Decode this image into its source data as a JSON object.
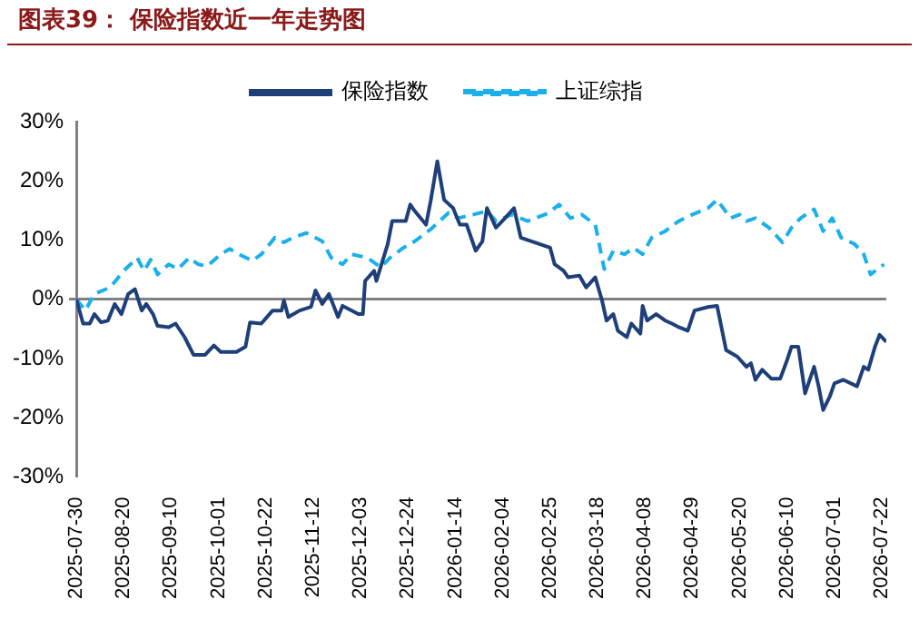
{
  "chart_data": {
    "type": "line",
    "title": "图表39： 保险指数近一年走势图",
    "legend": "top",
    "marker": "none",
    "xlim": [
      "2025-07-30",
      "2026-07-24"
    ],
    "xticks": [
      "2025-07-30",
      "2025-08-20",
      "2025-09-10",
      "2025-10-01",
      "2025-10-22",
      "2025-11-12",
      "2025-12-03",
      "2025-12-24",
      "2026-01-14",
      "2026-02-04",
      "2026-02-25",
      "2026-03-18",
      "2026-04-08",
      "2026-04-29",
      "2026-05-20",
      "2026-06-10",
      "2026-07-01",
      "2026-07-22"
    ],
    "ylim": [
      -30,
      30
    ],
    "yticks": [
      {
        "value": -30,
        "label": "-30%"
      },
      {
        "value": -20,
        "label": "-20%"
      },
      {
        "value": -10,
        "label": "-10%"
      },
      {
        "value": 0,
        "label": "0%"
      },
      {
        "value": 10,
        "label": "10%"
      },
      {
        "value": 20,
        "label": "20%"
      },
      {
        "value": 30,
        "label": "30%"
      }
    ],
    "series": [
      {
        "name": "保险指数",
        "color": "#1f3f7a",
        "line_style": "solid",
        "x": [
          "2025-07-30",
          "2025-08-02",
          "2025-08-05",
          "2025-08-07",
          "2025-08-10",
          "2025-08-13",
          "2025-08-16",
          "2025-08-19",
          "2025-08-22",
          "2025-08-25",
          "2025-08-28",
          "2025-08-30",
          "2025-09-02",
          "2025-09-04",
          "2025-09-09",
          "2025-09-12",
          "2025-09-16",
          "2025-09-20",
          "2025-09-25",
          "2025-09-29",
          "2025-10-02",
          "2025-10-09",
          "2025-10-13",
          "2025-10-15",
          "2025-10-20",
          "2025-10-25",
          "2025-10-29",
          "2025-10-30",
          "2025-11-01",
          "2025-11-06",
          "2025-11-11",
          "2025-11-13",
          "2025-11-16",
          "2025-11-19",
          "2025-11-23",
          "2025-11-25",
          "2025-12-02",
          "2025-12-04",
          "2025-12-05",
          "2025-12-09",
          "2025-12-10",
          "2025-12-15",
          "2025-12-17",
          "2025-12-23",
          "2025-12-25",
          "2025-12-27",
          "2026-01-01",
          "2026-01-03",
          "2026-01-06",
          "2026-01-09",
          "2026-01-13",
          "2026-01-16",
          "2026-01-19",
          "2026-01-23",
          "2026-01-26",
          "2026-01-28",
          "2026-02-01",
          "2026-02-05",
          "2026-02-09",
          "2026-02-12",
          "2026-02-25",
          "2026-02-27",
          "2026-03-03",
          "2026-03-05",
          "2026-03-10",
          "2026-03-13",
          "2026-03-17",
          "2026-03-20",
          "2026-03-22",
          "2026-03-25",
          "2026-03-27",
          "2026-03-31",
          "2026-04-02",
          "2026-04-06",
          "2026-04-07",
          "2026-04-09",
          "2026-04-13",
          "2026-04-17",
          "2026-04-20",
          "2026-04-23",
          "2026-04-27",
          "2026-04-30",
          "2026-05-06",
          "2026-05-10",
          "2026-05-14",
          "2026-05-19",
          "2026-05-23",
          "2026-05-25",
          "2026-05-27",
          "2026-05-30",
          "2026-06-03",
          "2026-06-07",
          "2026-06-10",
          "2026-06-12",
          "2026-06-15",
          "2026-06-18",
          "2026-06-22",
          "2026-06-24",
          "2026-06-26",
          "2026-06-29",
          "2026-07-01",
          "2026-07-05",
          "2026-07-11",
          "2026-07-14",
          "2026-07-16",
          "2026-07-19",
          "2026-07-21",
          "2026-07-24"
        ],
        "values": [
          0,
          -4.1,
          -4.1,
          -2.5,
          -3.9,
          -3.6,
          -0.8,
          -2.5,
          0.9,
          1.7,
          -1.9,
          -0.8,
          -2.5,
          -4.5,
          -4.7,
          -4.1,
          -6.4,
          -9.4,
          -9.4,
          -7.8,
          -8.9,
          -8.9,
          -8,
          -3.9,
          -4.1,
          -1.9,
          -1.9,
          -0.2,
          -3,
          -1.9,
          -1.3,
          1.5,
          -0.8,
          0.9,
          -3,
          -1.1,
          -2.5,
          -2.5,
          3.1,
          4.8,
          3.1,
          9.3,
          13.2,
          13.2,
          16,
          14.9,
          12.6,
          16.5,
          23.3,
          16.8,
          15.4,
          12.6,
          12.6,
          8.2,
          9.8,
          15.4,
          12.1,
          13.7,
          15.4,
          10.4,
          8.7,
          5.9,
          4.8,
          3.7,
          4,
          2,
          3.7,
          -0.2,
          -3.6,
          -2.5,
          -5.3,
          -6.4,
          -4.1,
          -5.8,
          -1.1,
          -3.6,
          -2.5,
          -3.6,
          -4.1,
          -4.7,
          -5.3,
          -1.9,
          -1.3,
          -1.1,
          -8.6,
          -9.7,
          -11.4,
          -10.8,
          -13.6,
          -11.9,
          -13.4,
          -13.4,
          -10.3,
          -8,
          -8,
          -15.9,
          -11.4,
          -14.7,
          -18.7,
          -16.4,
          -14.2,
          -13.6,
          -14.7,
          -11.4,
          -11.9,
          -8,
          -6,
          -7.2
        ]
      },
      {
        "name": "上证综指",
        "color": "#1ab0ec",
        "line_style": "dashed",
        "x": [
          "2025-07-30",
          "2025-08-03",
          "2025-08-07",
          "2025-08-14",
          "2025-08-20",
          "2025-08-26",
          "2025-08-29",
          "2025-09-01",
          "2025-09-04",
          "2025-09-09",
          "2025-09-13",
          "2025-09-18",
          "2025-09-22",
          "2025-09-26",
          "2025-10-02",
          "2025-10-06",
          "2025-10-10",
          "2025-10-16",
          "2025-10-20",
          "2025-10-26",
          "2025-10-30",
          "2025-11-03",
          "2025-11-09",
          "2025-11-16",
          "2025-11-20",
          "2025-11-25",
          "2025-11-29",
          "2025-12-06",
          "2025-12-12",
          "2025-12-16",
          "2025-12-22",
          "2025-12-27",
          "2026-01-03",
          "2026-01-11",
          "2026-01-15",
          "2026-01-22",
          "2026-01-28",
          "2026-02-01",
          "2026-02-08",
          "2026-02-15",
          "2026-02-24",
          "2026-03-01",
          "2026-03-06",
          "2026-03-11",
          "2026-03-17",
          "2026-03-21",
          "2026-03-25",
          "2026-03-30",
          "2026-04-03",
          "2026-04-07",
          "2026-04-11",
          "2026-04-17",
          "2026-04-23",
          "2026-04-29",
          "2026-05-06",
          "2026-05-10",
          "2026-05-16",
          "2026-05-20",
          "2026-05-23",
          "2026-05-27",
          "2026-06-02",
          "2026-06-08",
          "2026-06-12",
          "2026-06-16",
          "2026-06-22",
          "2026-06-26",
          "2026-06-30",
          "2026-07-04",
          "2026-07-10",
          "2026-07-14",
          "2026-07-17",
          "2026-07-23"
        ],
        "values": [
          0,
          -1.9,
          0.9,
          2,
          4.8,
          7,
          4.8,
          6.7,
          4.2,
          5.9,
          5.1,
          7,
          5.9,
          5.6,
          7.6,
          8.5,
          7.6,
          6.5,
          7.6,
          10.4,
          9.6,
          10.4,
          11.2,
          9.8,
          7,
          5.9,
          7.6,
          7,
          5.4,
          7,
          8.7,
          9.8,
          11.8,
          14.6,
          13.7,
          14.3,
          14.9,
          13.2,
          14.3,
          13.2,
          14.5,
          16,
          13.7,
          14.3,
          12.6,
          5.1,
          8.2,
          7.6,
          8.7,
          7.6,
          10.4,
          11.5,
          13.2,
          14.3,
          15.4,
          16.8,
          13.7,
          14.3,
          13.2,
          13.7,
          12.1,
          9.6,
          12.1,
          13.7,
          15.2,
          11.5,
          13.7,
          10.4,
          9.3,
          7.6,
          4.2,
          5.9
        ]
      }
    ]
  }
}
